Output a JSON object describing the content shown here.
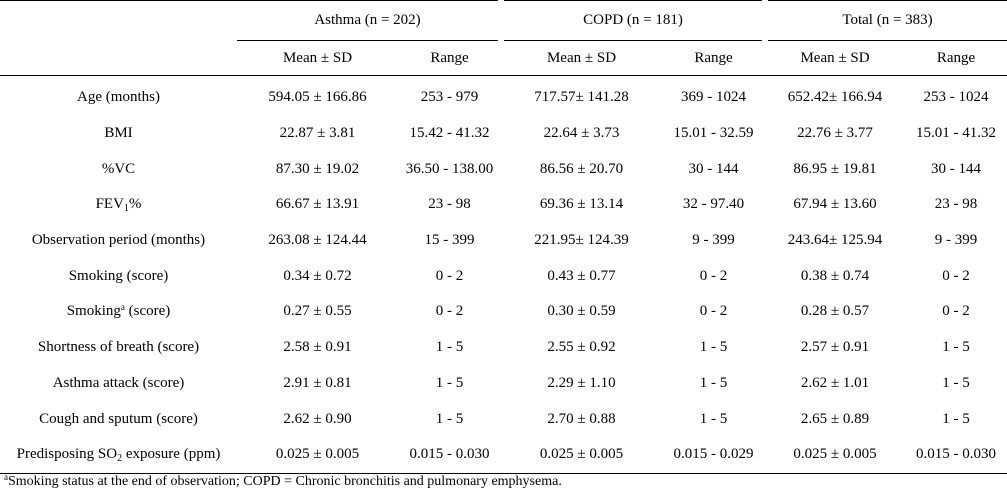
{
  "header": {
    "groups": [
      "Asthma (n = 202)",
      "COPD (n = 181)",
      "Total (n = 383)"
    ],
    "subheaders": [
      "Mean ± SD",
      "Range",
      "Mean ± SD",
      "Range",
      "Mean ± SD",
      "Range"
    ]
  },
  "rows": [
    {
      "label": "Age (months)",
      "cells": [
        "594.05 ± 166.86",
        "253 - 979",
        "717.57± 141.28",
        "369 - 1024",
        "652.42± 166.94",
        "253 - 1024"
      ]
    },
    {
      "label": "BMI",
      "cells": [
        "22.87 ± 3.81",
        "15.42 - 41.32",
        "22.64 ± 3.73",
        "15.01 - 32.59",
        "22.76 ± 3.77",
        "15.01 - 41.32"
      ]
    },
    {
      "label": "%VC",
      "cells": [
        "87.30 ± 19.02",
        "36.50 - 138.00",
        "86.56 ± 20.70",
        "30 - 144",
        "86.95 ± 19.81",
        "30 - 144"
      ]
    },
    {
      "label_pre": "FEV",
      "label_sub": "1",
      "label_post": "%",
      "cells": [
        "66.67 ± 13.91",
        "23 - 98",
        "69.36 ± 13.14",
        "32 - 97.40",
        "67.94 ± 13.60",
        "23 - 98"
      ]
    },
    {
      "label": "Observation period (months)",
      "cells": [
        "263.08 ± 124.44",
        "15 - 399",
        "221.95± 124.39",
        "9 - 399",
        "243.64± 125.94",
        "9 - 399"
      ]
    },
    {
      "label": "Smoking (score)",
      "cells": [
        "0.34 ± 0.72",
        "0 - 2",
        "0.43 ± 0.77",
        "0 - 2",
        "0.38 ± 0.74",
        "0 - 2"
      ]
    },
    {
      "label_pre": "Smoking",
      "label_sup": "a",
      "label_post": " (score)",
      "cells": [
        "0.27 ± 0.55",
        "0 - 2",
        "0.30 ± 0.59",
        "0 - 2",
        "0.28 ± 0.57",
        "0 - 2"
      ]
    },
    {
      "label": "Shortness of breath (score)",
      "cells": [
        "2.58 ± 0.91",
        "1 - 5",
        "2.55 ± 0.92",
        "1 - 5",
        "2.57 ± 0.91",
        "1 - 5"
      ]
    },
    {
      "label": "Asthma attack (score)",
      "cells": [
        "2.91 ± 0.81",
        "1 - 5",
        "2.29 ± 1.10",
        "1 - 5",
        "2.62 ± 1.01",
        "1 - 5"
      ]
    },
    {
      "label": "Cough and sputum (score)",
      "cells": [
        "2.62 ± 0.90",
        "1 - 5",
        "2.70 ± 0.88",
        "1 - 5",
        "2.65 ± 0.89",
        "1 - 5"
      ]
    },
    {
      "label_pre": "Predisposing SO",
      "label_sub": "2",
      "label_post": " exposure (ppm)",
      "cells": [
        "0.025 ± 0.005",
        "0.015 - 0.030",
        "0.025 ± 0.005",
        "0.015 - 0.029",
        "0.025 ± 0.005",
        "0.015 - 0.030"
      ]
    }
  ],
  "footnote": {
    "marker": "a",
    "text": "Smoking status at the end of observation; COPD = Chronic bronchitis and pulmonary emphysema."
  }
}
